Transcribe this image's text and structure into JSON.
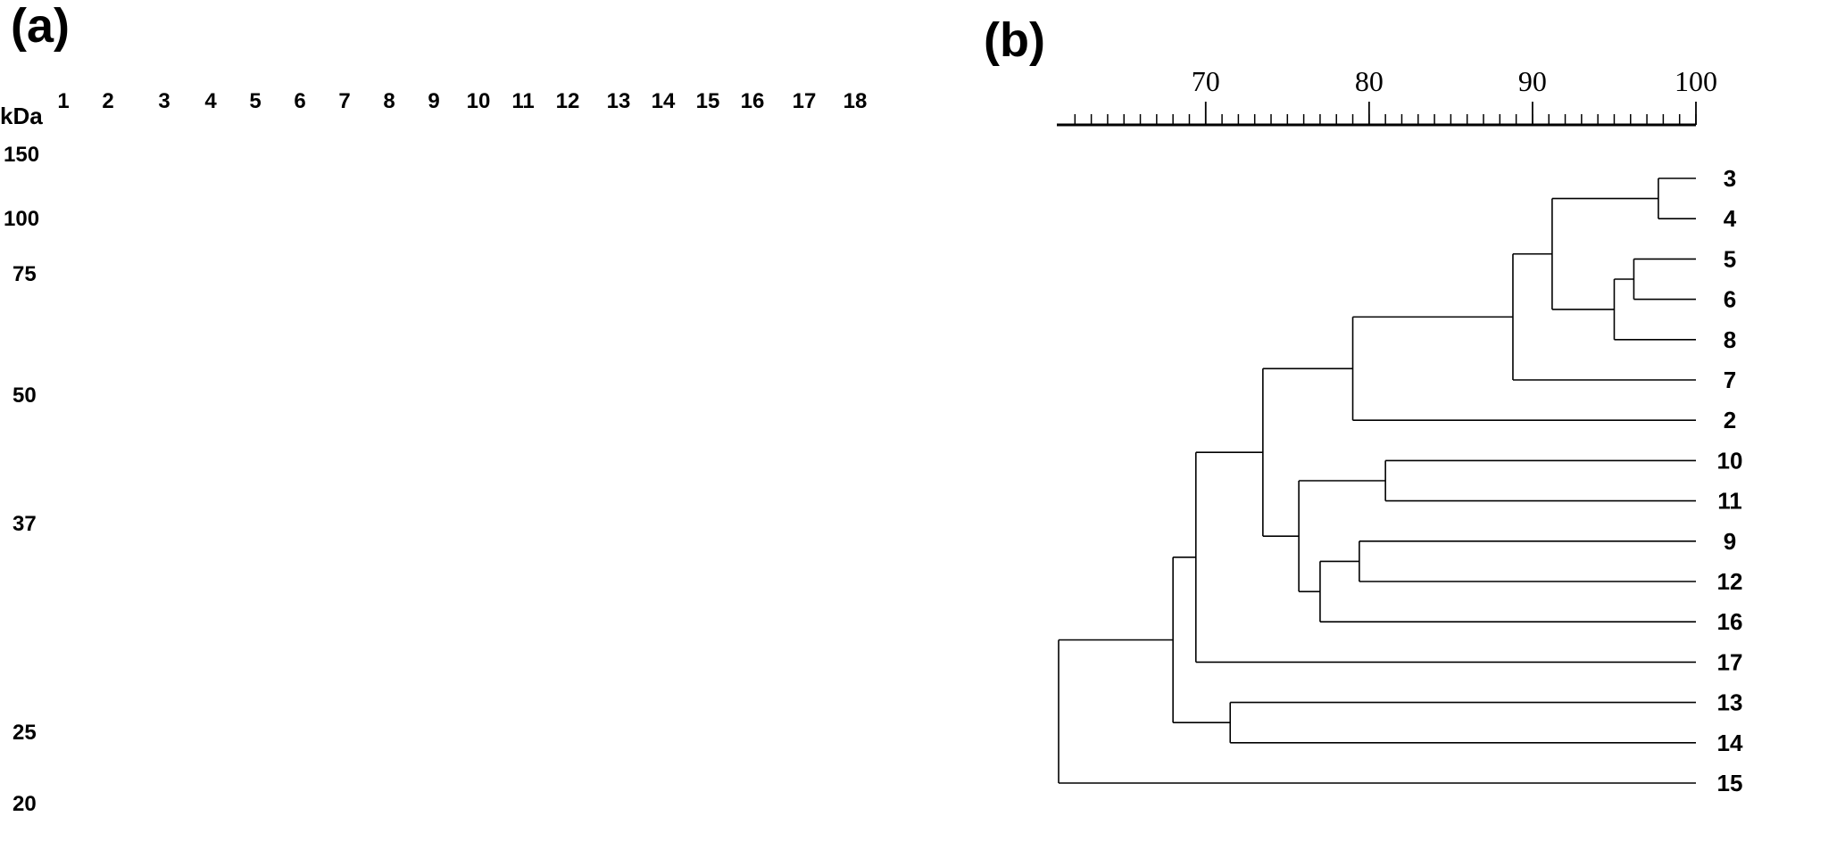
{
  "panel_a": {
    "label": "(a)",
    "kda_label": "kDa",
    "lanes": [
      "1",
      "2",
      "3",
      "4",
      "5",
      "6",
      "7",
      "8",
      "9",
      "10",
      "11",
      "12",
      "13",
      "14",
      "15",
      "16",
      "17",
      "18"
    ],
    "markers": [
      "150",
      "100",
      "75",
      "50",
      "37",
      "25",
      "20"
    ]
  },
  "panel_b": {
    "label": "(b)",
    "scale": {
      "min": 61,
      "max": 100,
      "ticks": [
        "70",
        "80",
        "90",
        "100"
      ]
    },
    "leaves": [
      "3",
      "4",
      "5",
      "6",
      "8",
      "7",
      "2",
      "10",
      "11",
      "9",
      "12",
      "16",
      "17",
      "13",
      "14",
      "15"
    ],
    "merges": [
      {
        "a": "3",
        "b": "4",
        "similarity": 97.7
      },
      {
        "a": "5",
        "b": "6",
        "similarity": 96.2
      },
      {
        "a": "(5,6)",
        "b": "8",
        "similarity": 95.0
      },
      {
        "a": "(3,4)",
        "b": "((5,6),8)",
        "similarity": 91.2
      },
      {
        "a": "(3,4,5,6,8)",
        "b": "7",
        "similarity": 88.8
      },
      {
        "a": "(3,4,5,6,8,7)",
        "b": "2",
        "similarity": 79.0
      },
      {
        "a": "10",
        "b": "11",
        "similarity": 81.0
      },
      {
        "a": "9",
        "b": "12",
        "similarity": 79.4
      },
      {
        "a": "(9,12)",
        "b": "16",
        "similarity": 77.0
      },
      {
        "a": "(10,11)",
        "b": "(9,12,16)",
        "similarity": 75.7
      },
      {
        "a": "(2..8)",
        "b": "(9..16)",
        "similarity": 73.5
      },
      {
        "a": "13",
        "b": "14",
        "similarity": 71.5
      },
      {
        "a": "(2..16)",
        "b": "17",
        "similarity": 69.4
      },
      {
        "a": "(2..17)",
        "b": "(13,14)",
        "similarity": 68.0
      },
      {
        "a": "(2..17,13,14)",
        "b": "15",
        "similarity": 61.0
      }
    ]
  }
}
